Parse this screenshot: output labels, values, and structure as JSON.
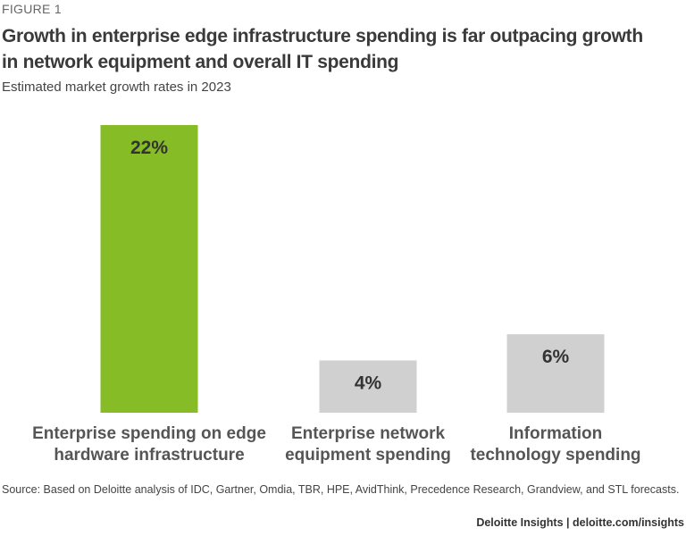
{
  "figure_label": "FIGURE 1",
  "chart_data": {
    "type": "bar",
    "title": "Growth in enterprise edge infrastructure spending is far outpacing growth in network equipment and overall IT spending",
    "subtitle": "Estimated market growth rates in 2023",
    "categories": [
      [
        "Enterprise spending on edge",
        "hardware infrastructure"
      ],
      [
        "Enterprise network",
        "equipment spending"
      ],
      [
        "Information",
        "technology spending"
      ]
    ],
    "values": [
      22,
      4,
      6
    ],
    "data_labels": [
      "22%",
      "4%",
      "6%"
    ],
    "colors": [
      "#86bc25",
      "#d0d0d0",
      "#d0d0d0"
    ],
    "ylim": [
      0,
      22
    ],
    "grid": false
  },
  "source": "Source: Based on Deloitte analysis of IDC, Gartner, Omdia, TBR, HPE, AvidThink, Precedence Research, Grandview, and STL forecasts.",
  "footer": "Deloitte Insights | deloitte.com/insights"
}
